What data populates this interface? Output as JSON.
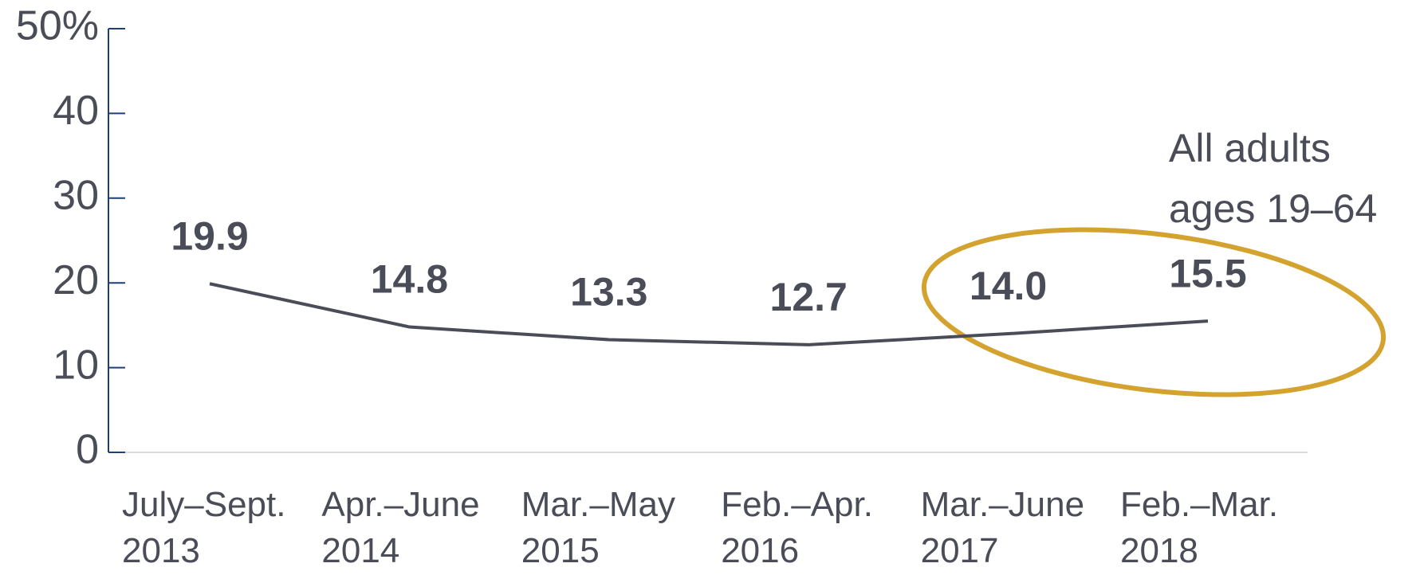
{
  "chart_data": {
    "type": "line",
    "categories": [
      "July–Sept. 2013",
      "Apr.–June 2014",
      "Mar.–May 2015",
      "Feb.–Apr. 2016",
      "Mar.–June 2017",
      "Feb.–Mar. 2018"
    ],
    "series": [
      {
        "name": "All adults ages 19–64",
        "color": "#4a4d57",
        "values": [
          19.9,
          14.8,
          13.3,
          12.7,
          14.0,
          15.5
        ],
        "value_labels": [
          "19.9",
          "14.8",
          "13.3",
          "12.7",
          "14.0",
          "15.5"
        ]
      }
    ],
    "ylim": [
      0,
      50
    ],
    "yticks": [
      0,
      10,
      20,
      30,
      40,
      {
        "value": 50,
        "label": "50%"
      }
    ]
  }
}
